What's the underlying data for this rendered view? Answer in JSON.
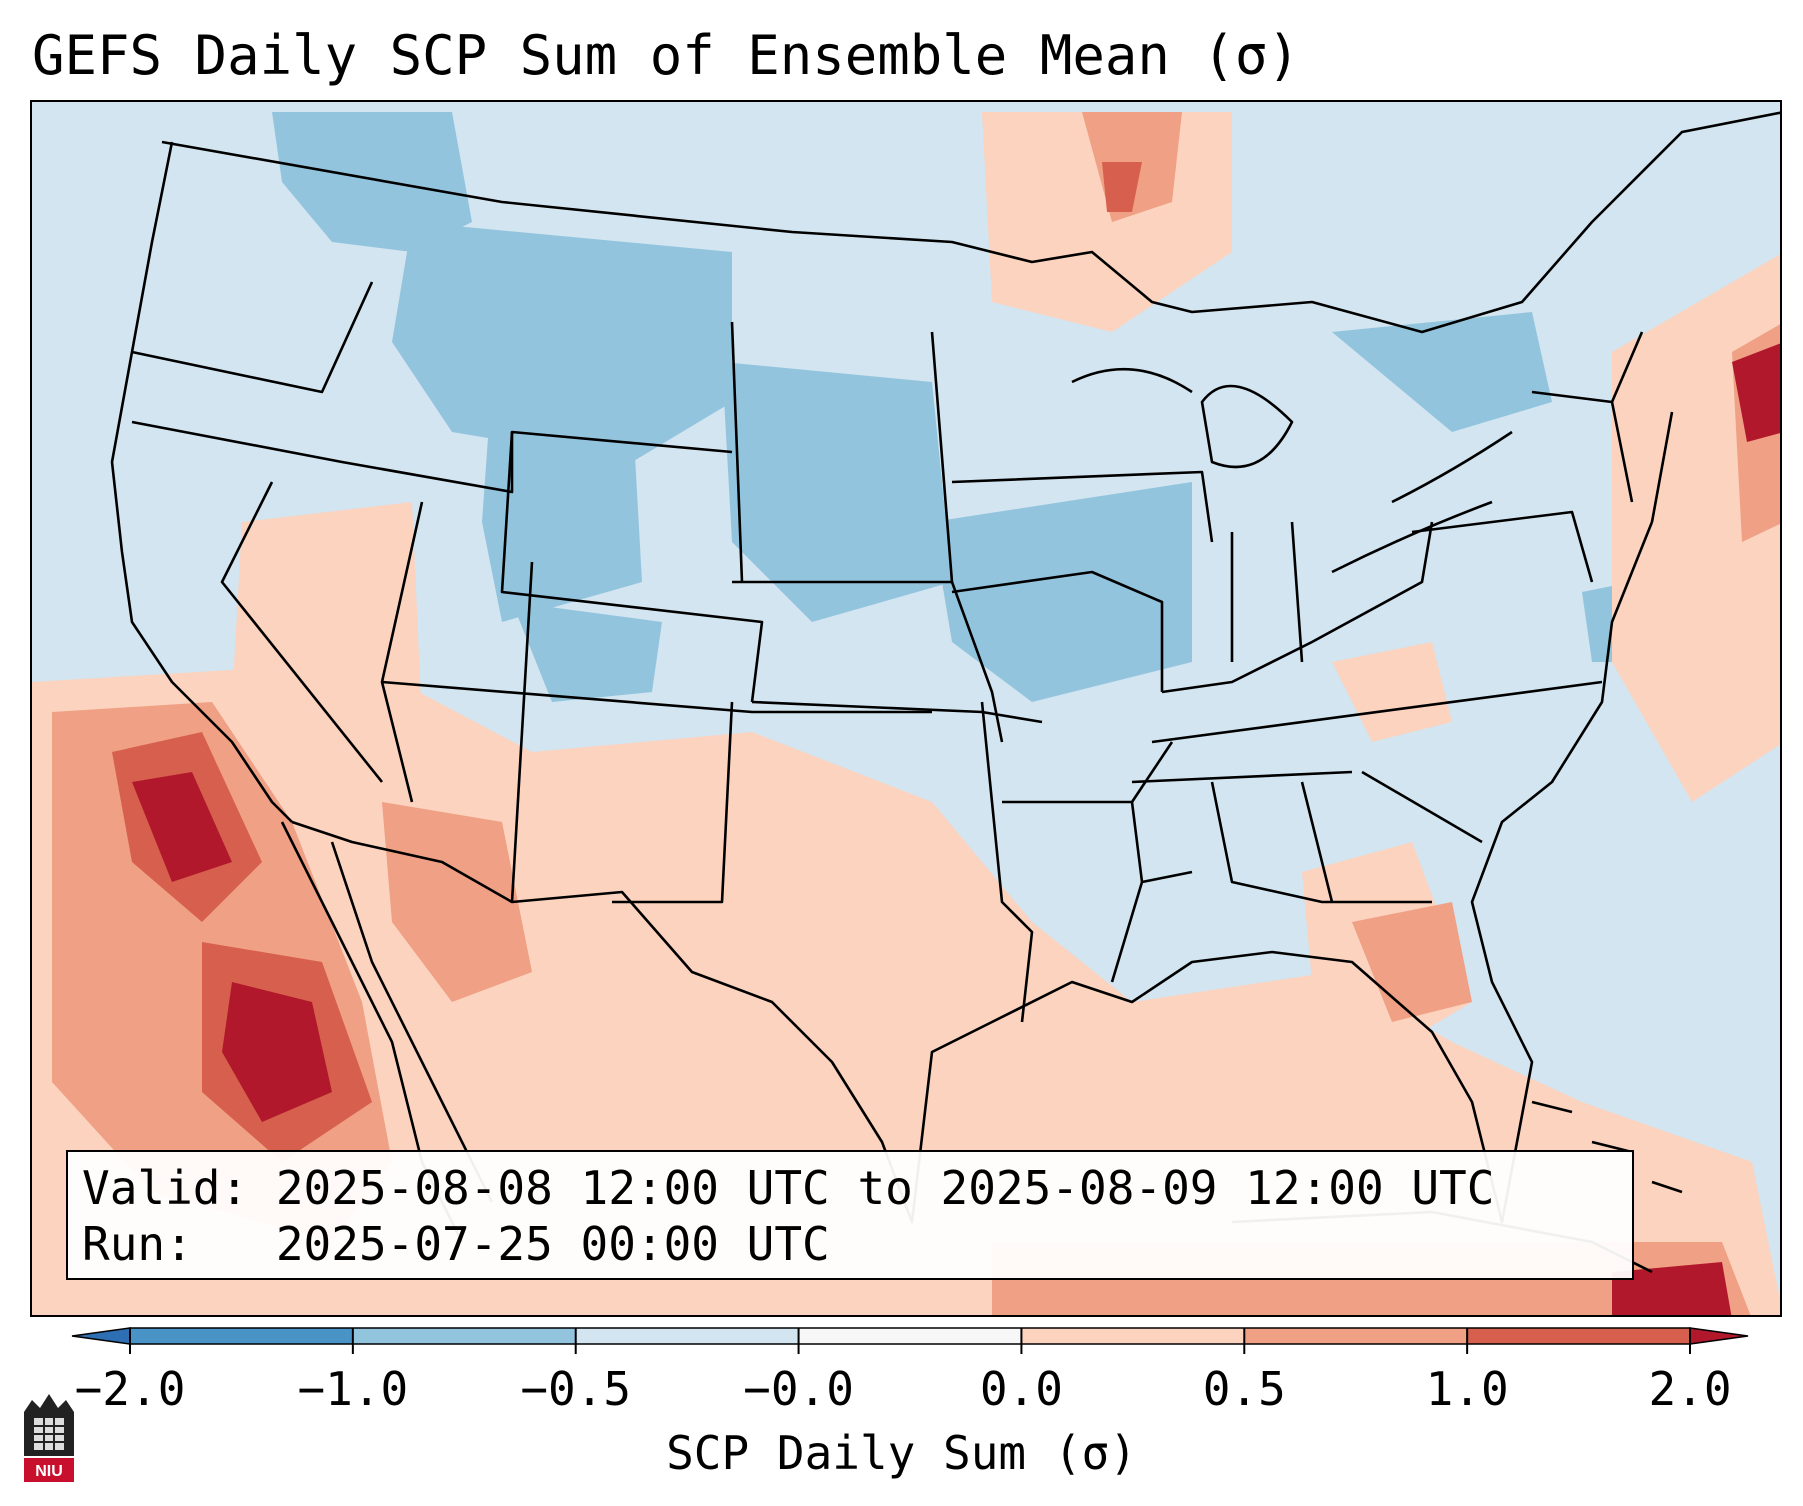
{
  "title": "GEFS Daily SCP Sum of Ensemble Mean (σ)",
  "infobox": {
    "valid_line": "Valid: 2025-08-08 12:00 UTC to 2025-08-09 12:00 UTC",
    "run_line": "Run:   2025-07-25 00:00 UTC"
  },
  "colorbar": {
    "label": "SCP Daily Sum (σ)",
    "ticks": [
      "−2.0",
      "−1.0",
      "−0.5",
      "−0.0",
      "0.0",
      "0.5",
      "1.0",
      "2.0"
    ],
    "colors": [
      "#4a93c6",
      "#93c4de",
      "#d2e5f0",
      "#f7f7f7",
      "#fbd3bf",
      "#f0a084",
      "#d6604d"
    ],
    "extend_low_color": "#2d6fb2",
    "extend_high_color": "#b2182b"
  },
  "logo": {
    "text": "NIU"
  }
}
